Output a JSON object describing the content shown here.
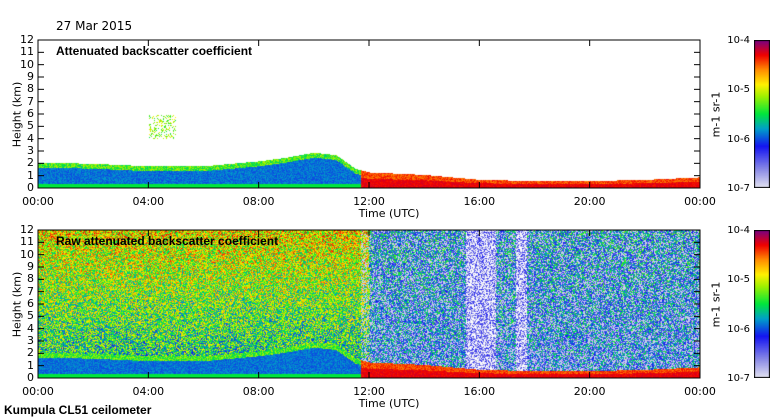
{
  "date": "27 Mar 2015",
  "footer": "Kumpula CL51 ceilometer",
  "chart_data": [
    {
      "type": "heatmap",
      "title": "Attenuated backscatter coefficient",
      "xlabel": "Time (UTC)",
      "ylabel": "Height (km)",
      "xticks": [
        "00:00",
        "04:00",
        "08:00",
        "12:00",
        "16:00",
        "20:00",
        "00:00"
      ],
      "yticks": [
        "0",
        "1",
        "2",
        "3",
        "4",
        "5",
        "6",
        "7",
        "8",
        "9",
        "10",
        "11",
        "12"
      ],
      "ylim": [
        0,
        12
      ],
      "xlim_hours": [
        0,
        24
      ],
      "colorbar": {
        "label": "m-1 sr-1",
        "ticks": [
          "10-7",
          "10-6",
          "10-5",
          "10-4"
        ],
        "range_log10": [
          -7,
          -4
        ]
      },
      "boundary_layer_top_km": {
        "hours": [
          0,
          2,
          4,
          6,
          8,
          9,
          10,
          10.8,
          11.5,
          12,
          14,
          15,
          16,
          18,
          20,
          22,
          24
        ],
        "values": [
          2.1,
          2.0,
          1.8,
          1.8,
          2.2,
          2.5,
          2.9,
          2.7,
          1.6,
          1.3,
          1.1,
          0.9,
          0.7,
          0.6,
          0.6,
          0.7,
          0.9
        ]
      }
    },
    {
      "type": "heatmap",
      "title": "Raw attenuated backscatter coefficient",
      "xlabel": "Time (UTC)",
      "ylabel": "Height (km)",
      "xticks": [
        "00:00",
        "04:00",
        "08:00",
        "12:00",
        "16:00",
        "20:00",
        "00:00"
      ],
      "yticks": [
        "0",
        "1",
        "2",
        "3",
        "4",
        "5",
        "6",
        "7",
        "8",
        "9",
        "10",
        "11",
        "12"
      ],
      "ylim": [
        0,
        12
      ],
      "xlim_hours": [
        0,
        24
      ],
      "colorbar": {
        "label": "m-1 sr-1",
        "ticks": [
          "10-7",
          "10-6",
          "10-5",
          "10-4"
        ],
        "range_log10": [
          -7,
          -4
        ]
      }
    }
  ]
}
